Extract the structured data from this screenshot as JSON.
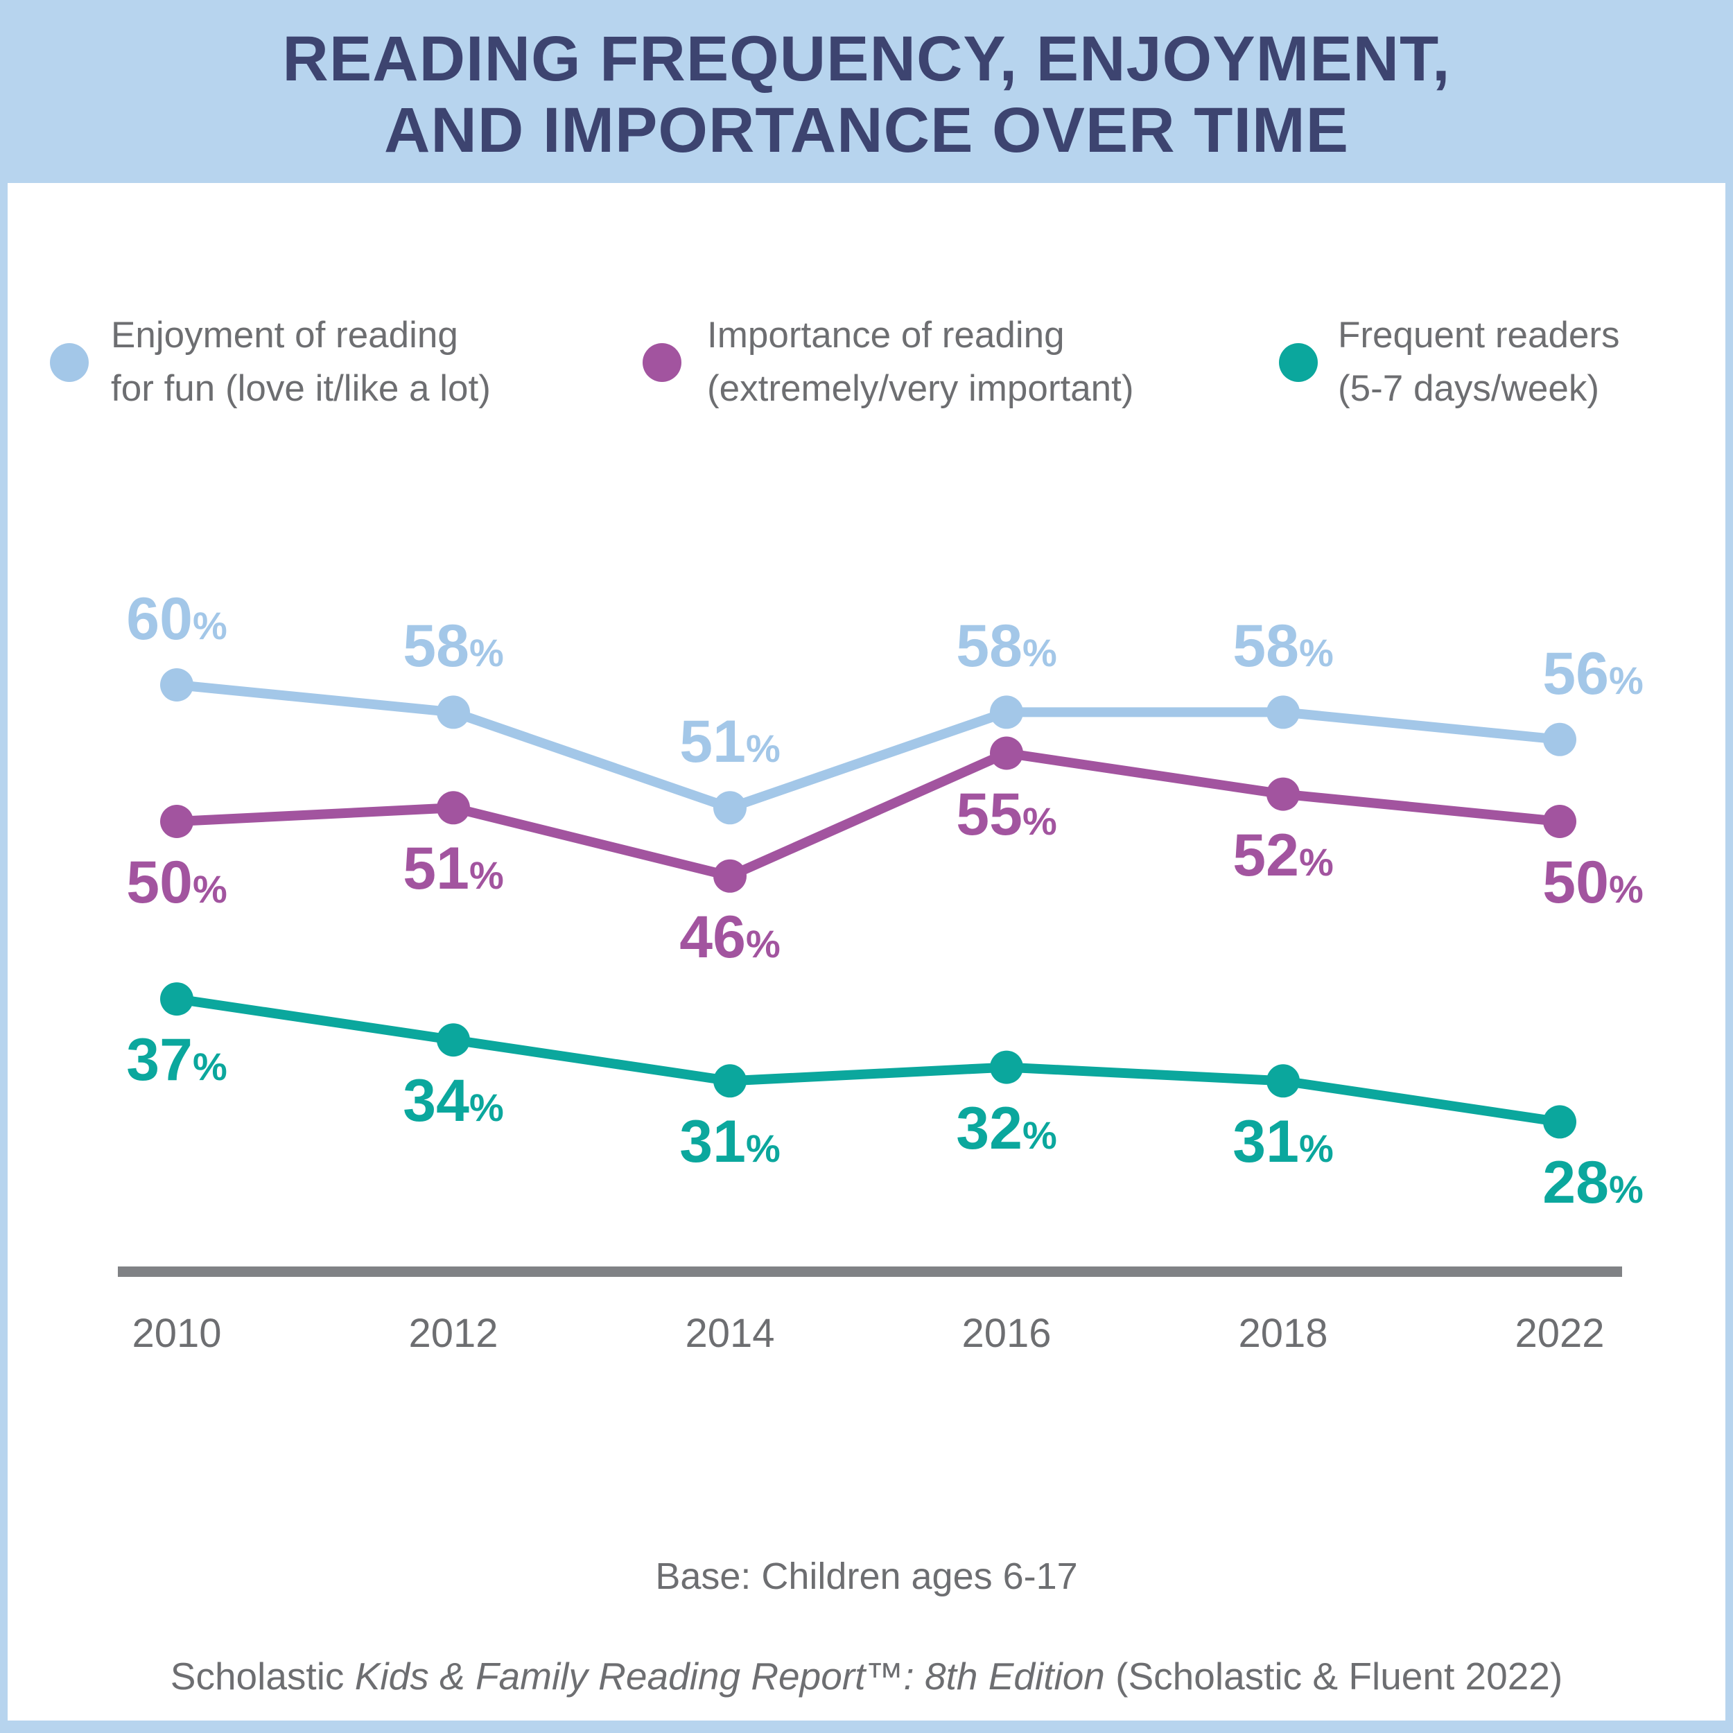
{
  "title": {
    "line1": "READING FREQUENCY, ENJOYMENT,",
    "line2": "AND IMPORTANCE OVER TIME"
  },
  "legend": [
    {
      "color": "#a3c7e8",
      "lines": [
        "Enjoyment of reading",
        "for fun (love it/like a lot)"
      ]
    },
    {
      "color": "#a2549f",
      "lines": [
        "Importance of reading",
        "(extremely/very important)"
      ]
    },
    {
      "color": "#0ba79d",
      "lines": [
        "Frequent readers",
        "(5-7 days/week)"
      ]
    }
  ],
  "chart_data": {
    "type": "line",
    "categories": [
      "2010",
      "2012",
      "2014",
      "2016",
      "2018",
      "2022"
    ],
    "series": [
      {
        "name": "Enjoyment of reading for fun (love it/like a lot)",
        "color": "#a3c7e8",
        "values": [
          60,
          58,
          51,
          58,
          58,
          56
        ],
        "label_position": "above"
      },
      {
        "name": "Importance of reading (extremely/very important)",
        "color": "#a2549f",
        "values": [
          50,
          51,
          46,
          55,
          52,
          50
        ],
        "label_position": "below"
      },
      {
        "name": "Frequent readers (5-7 days/week)",
        "color": "#0ba79d",
        "values": [
          37,
          34,
          31,
          32,
          31,
          28
        ],
        "label_position": "below"
      }
    ],
    "value_suffix": "%",
    "ylim": [
      25,
      63
    ],
    "grid": false,
    "legend_position": "top",
    "title": "Reading frequency, enjoyment, and importance over time",
    "xlabel": "",
    "ylabel": ""
  },
  "footer": {
    "base_note": "Base: Children ages 6-17",
    "source_prefix": "Scholastic ",
    "source_italic": "Kids & Family Reading Report™: 8th Edition",
    "source_suffix": " (Scholastic & Fluent 2022)"
  },
  "colors": {
    "frame": "#b7d4ee",
    "panel": "#ffffff",
    "title_text": "#3d4470",
    "body_text": "#6d6e71",
    "axis": "#808285"
  }
}
